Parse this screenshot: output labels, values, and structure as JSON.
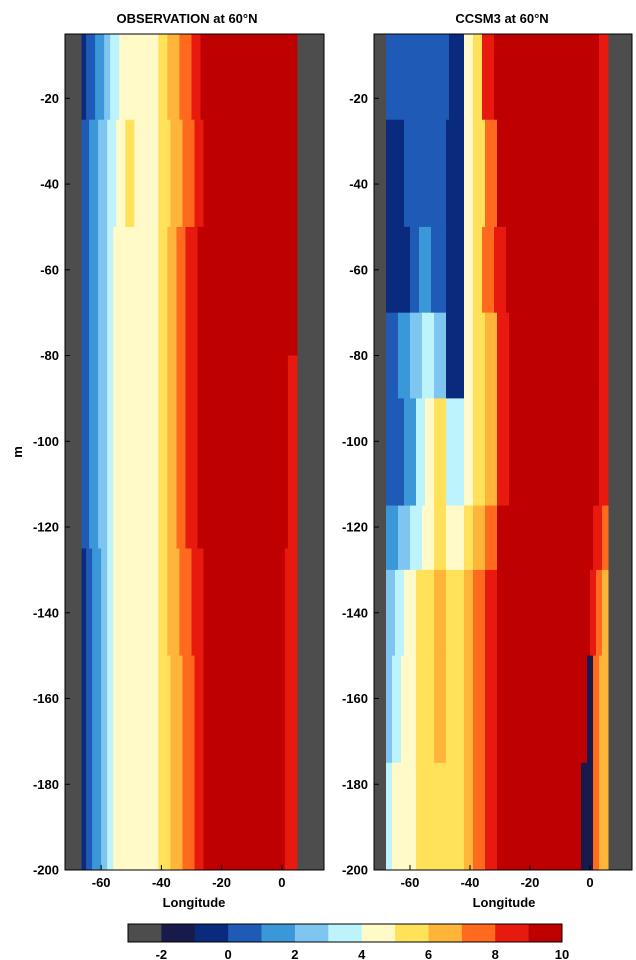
{
  "chart_data": [
    {
      "type": "heatmap",
      "title": "OBSERVATION at 60°N",
      "xlabel": "Longitude",
      "ylabel": "m",
      "xlim": [
        -72,
        14
      ],
      "ylim": [
        -200,
        -5
      ],
      "xticks": [
        -60,
        -40,
        -20,
        0
      ],
      "yticks": [
        -20,
        -40,
        -60,
        -80,
        -100,
        -120,
        -140,
        -160,
        -180,
        -200
      ],
      "missing_color": "#4d4d4d",
      "land": [
        [
          -72,
          -66.5
        ],
        [
          5,
          14
        ]
      ],
      "layers": [
        {
          "top": -5,
          "bottom": -25,
          "bands": [
            [
              -66.5,
              -65,
              -1
            ],
            [
              -65,
              -62,
              0
            ],
            [
              -62,
              -59,
              1
            ],
            [
              -59,
              -57,
              2
            ],
            [
              -57,
              -54,
              3
            ],
            [
              -54,
              -50,
              4
            ],
            [
              -50,
              -41,
              4
            ],
            [
              -41,
              -38,
              5
            ],
            [
              -38,
              -34,
              6
            ],
            [
              -34,
              -30,
              7
            ],
            [
              -30,
              -27,
              8
            ],
            [
              -27,
              -24,
              9
            ],
            [
              -24,
              5,
              10
            ]
          ]
        },
        {
          "top": -25,
          "bottom": -50,
          "bands": [
            [
              -66.5,
              -64,
              0
            ],
            [
              -64,
              -61,
              1
            ],
            [
              -61,
              -58,
              2
            ],
            [
              -58,
              -55,
              3
            ],
            [
              -55,
              -52,
              4
            ],
            [
              -52,
              -49,
              5
            ],
            [
              -49,
              -41,
              4
            ],
            [
              -41,
              -37,
              5
            ],
            [
              -37,
              -33,
              6
            ],
            [
              -33,
              -29,
              7
            ],
            [
              -29,
              -26,
              8
            ],
            [
              -26,
              -22,
              9
            ],
            [
              -22,
              5,
              10
            ]
          ]
        },
        {
          "top": -50,
          "bottom": -80,
          "bands": [
            [
              -66.5,
              -64,
              0
            ],
            [
              -64,
              -61,
              1
            ],
            [
              -61,
              -58,
              2
            ],
            [
              -58,
              -56,
              3
            ],
            [
              -56,
              -41,
              4
            ],
            [
              -41,
              -38,
              5
            ],
            [
              -38,
              -35,
              6
            ],
            [
              -35,
              -32,
              7
            ],
            [
              -32,
              -28,
              8
            ],
            [
              -28,
              -24,
              9
            ],
            [
              -24,
              3,
              10
            ],
            [
              3,
              5,
              9
            ]
          ]
        },
        {
          "top": -80,
          "bottom": -125,
          "bands": [
            [
              -66.5,
              -64,
              0
            ],
            [
              -64,
              -61,
              1
            ],
            [
              -61,
              -58,
              2
            ],
            [
              -58,
              -56,
              3
            ],
            [
              -56,
              -41,
              4
            ],
            [
              -41,
              -38,
              5
            ],
            [
              -38,
              -35,
              6
            ],
            [
              -35,
              -32,
              7
            ],
            [
              -32,
              -28,
              8
            ],
            [
              -28,
              -18,
              9
            ],
            [
              -18,
              2,
              10
            ],
            [
              2,
              5,
              8
            ]
          ]
        },
        {
          "top": -125,
          "bottom": -150,
          "bands": [
            [
              -66.5,
              -65,
              -1
            ],
            [
              -65,
              -63,
              0
            ],
            [
              -63,
              -60,
              1
            ],
            [
              -60,
              -58,
              2
            ],
            [
              -58,
              -56,
              3
            ],
            [
              -56,
              -41,
              4
            ],
            [
              -41,
              -38,
              5
            ],
            [
              -38,
              -34,
              6
            ],
            [
              -34,
              -30,
              7
            ],
            [
              -30,
              -26,
              8
            ],
            [
              -26,
              -22,
              9
            ],
            [
              -22,
              -5,
              9
            ],
            [
              -5,
              1,
              10
            ],
            [
              1,
              5,
              8
            ]
          ]
        },
        {
          "top": -150,
          "bottom": -200,
          "bands": [
            [
              -66.5,
              -65,
              -1
            ],
            [
              -65,
              -63,
              0
            ],
            [
              -63,
              -60,
              1
            ],
            [
              -60,
              -58,
              2
            ],
            [
              -58,
              -56,
              3
            ],
            [
              -56,
              -41,
              4
            ],
            [
              -41,
              -37,
              5
            ],
            [
              -37,
              -33,
              6
            ],
            [
              -33,
              -29,
              7
            ],
            [
              -29,
              -26,
              8
            ],
            [
              -26,
              -4,
              9
            ],
            [
              -4,
              -2,
              10
            ],
            [
              -2,
              1,
              11
            ],
            [
              1,
              5,
              8
            ]
          ]
        }
      ]
    },
    {
      "type": "heatmap",
      "title": "CCSM3 at 60°N",
      "xlabel": "Longitude",
      "ylabel": "",
      "xlim": [
        -72,
        14
      ],
      "ylim": [
        -200,
        -5
      ],
      "xticks": [
        -60,
        -40,
        -20,
        0
      ],
      "yticks": [
        -20,
        -40,
        -60,
        -80,
        -100,
        -120,
        -140,
        -160,
        -180,
        -200
      ],
      "missing_color": "#4d4d4d",
      "land": [
        [
          -72,
          -68
        ],
        [
          6,
          14
        ]
      ],
      "layers": [
        {
          "top": -5,
          "bottom": -25,
          "bands": [
            [
              -68,
              -65,
              0
            ],
            [
              -65,
              -47,
              0
            ],
            [
              -47,
              -42,
              -1
            ],
            [
              -42,
              -39,
              4
            ],
            [
              -39,
              -36,
              5
            ],
            [
              -36,
              -32,
              8
            ],
            [
              -32,
              -28,
              9
            ],
            [
              -28,
              1,
              10
            ],
            [
              1,
              3,
              9
            ],
            [
              3,
              6,
              8
            ]
          ]
        },
        {
          "top": -25,
          "bottom": -50,
          "bands": [
            [
              -68,
              -62,
              -1
            ],
            [
              -62,
              -48,
              0
            ],
            [
              -48,
              -42,
              -1
            ],
            [
              -42,
              -39,
              4
            ],
            [
              -39,
              -35,
              5
            ],
            [
              -35,
              -31,
              7
            ],
            [
              -31,
              -27,
              9
            ],
            [
              -27,
              1,
              10
            ],
            [
              1,
              3,
              9
            ],
            [
              3,
              6,
              8
            ]
          ]
        },
        {
          "top": -50,
          "bottom": -70,
          "bands": [
            [
              -68,
              -60,
              -1
            ],
            [
              -60,
              -57,
              0
            ],
            [
              -57,
              -53,
              1
            ],
            [
              -53,
              -48,
              0
            ],
            [
              -48,
              -42,
              -1
            ],
            [
              -42,
              -39,
              4
            ],
            [
              -39,
              -36,
              5
            ],
            [
              -36,
              -32,
              7
            ],
            [
              -32,
              -28,
              8
            ],
            [
              -28,
              1,
              10
            ],
            [
              1,
              3,
              9
            ],
            [
              3,
              6,
              8
            ]
          ]
        },
        {
          "top": -70,
          "bottom": -90,
          "bands": [
            [
              -68,
              -64,
              0
            ],
            [
              -64,
              -60,
              1
            ],
            [
              -60,
              -56,
              2
            ],
            [
              -56,
              -52,
              3
            ],
            [
              -52,
              -48,
              2
            ],
            [
              -48,
              -42,
              -1
            ],
            [
              -42,
              -39,
              4
            ],
            [
              -39,
              -35,
              5
            ],
            [
              -35,
              -31,
              6
            ],
            [
              -31,
              -27,
              8
            ],
            [
              -27,
              1,
              10
            ],
            [
              1,
              3,
              9
            ],
            [
              3,
              6,
              8
            ]
          ]
        },
        {
          "top": -90,
          "bottom": -115,
          "bands": [
            [
              -68,
              -62,
              0
            ],
            [
              -62,
              -58,
              1
            ],
            [
              -58,
              -55,
              3
            ],
            [
              -55,
              -52,
              4
            ],
            [
              -52,
              -48,
              5
            ],
            [
              -48,
              -42,
              3
            ],
            [
              -42,
              -39,
              4
            ],
            [
              -39,
              -35,
              5
            ],
            [
              -35,
              -31,
              6
            ],
            [
              -31,
              -27,
              8
            ],
            [
              -27,
              1,
              10
            ],
            [
              1,
              3,
              9
            ],
            [
              3,
              6,
              8
            ]
          ]
        },
        {
          "top": -115,
          "bottom": -130,
          "bands": [
            [
              -68,
              -64,
              1
            ],
            [
              -64,
              -60,
              2
            ],
            [
              -60,
              -56,
              3
            ],
            [
              -56,
              -52,
              4
            ],
            [
              -52,
              -48,
              5
            ],
            [
              -48,
              -42,
              4
            ],
            [
              -42,
              -39,
              5
            ],
            [
              -39,
              -35,
              6
            ],
            [
              -35,
              -31,
              7
            ],
            [
              -31,
              -27,
              9
            ],
            [
              -27,
              1,
              10
            ],
            [
              1,
              4,
              8
            ],
            [
              4,
              6,
              7
            ]
          ]
        },
        {
          "top": -130,
          "bottom": -150,
          "bands": [
            [
              -68,
              -65,
              2
            ],
            [
              -65,
              -62,
              3
            ],
            [
              -62,
              -58,
              4
            ],
            [
              -58,
              -52,
              5
            ],
            [
              -52,
              -48,
              6
            ],
            [
              -48,
              -42,
              5
            ],
            [
              -42,
              -39,
              6
            ],
            [
              -39,
              -35,
              7
            ],
            [
              -35,
              -31,
              8
            ],
            [
              -31,
              -27,
              9
            ],
            [
              -27,
              0,
              10
            ],
            [
              0,
              2,
              8
            ],
            [
              2,
              4,
              7
            ],
            [
              4,
              6,
              6
            ]
          ]
        },
        {
          "top": -150,
          "bottom": -175,
          "bands": [
            [
              -68,
              -66,
              2
            ],
            [
              -66,
              -63,
              3
            ],
            [
              -63,
              -58,
              4
            ],
            [
              -58,
              -52,
              5
            ],
            [
              -52,
              -48,
              6
            ],
            [
              -48,
              -42,
              5
            ],
            [
              -42,
              -39,
              6
            ],
            [
              -39,
              -35,
              7
            ],
            [
              -35,
              -31,
              8
            ],
            [
              -31,
              -27,
              9
            ],
            [
              -27,
              -1,
              10
            ],
            [
              -1,
              1,
              -2
            ],
            [
              1,
              3,
              7
            ],
            [
              3,
              6,
              6
            ]
          ]
        },
        {
          "top": -175,
          "bottom": -200,
          "bands": [
            [
              -68,
              -66,
              3
            ],
            [
              -66,
              -63,
              4
            ],
            [
              -63,
              -58,
              4
            ],
            [
              -58,
              -52,
              5
            ],
            [
              -52,
              -48,
              5
            ],
            [
              -48,
              -42,
              5
            ],
            [
              -42,
              -39,
              6
            ],
            [
              -39,
              -35,
              7
            ],
            [
              -35,
              -31,
              8
            ],
            [
              -31,
              -27,
              9
            ],
            [
              -27,
              -3,
              10
            ],
            [
              -3,
              1,
              -2
            ],
            [
              1,
              3,
              7
            ],
            [
              3,
              6,
              6
            ]
          ]
        }
      ]
    },
    {
      "type": "colorbar",
      "levels": [
        -3,
        -2,
        -1,
        0,
        1,
        2,
        3,
        4,
        5,
        6,
        7,
        8,
        9,
        10
      ],
      "colors": [
        "#4d4d4d",
        "#181a4c",
        "#0a2a7e",
        "#1f5bb6",
        "#3a98d8",
        "#7ec6f0",
        "#bdf4fb",
        "#fffac8",
        "#ffe25a",
        "#ffb53a",
        "#ff6a1e",
        "#e8190e",
        "#bf0000"
      ],
      "tick_labels": [
        "-2",
        "0",
        "2",
        "4",
        "6",
        "8",
        "10"
      ],
      "tick_values": [
        -2,
        0,
        2,
        4,
        6,
        8,
        10
      ]
    }
  ]
}
